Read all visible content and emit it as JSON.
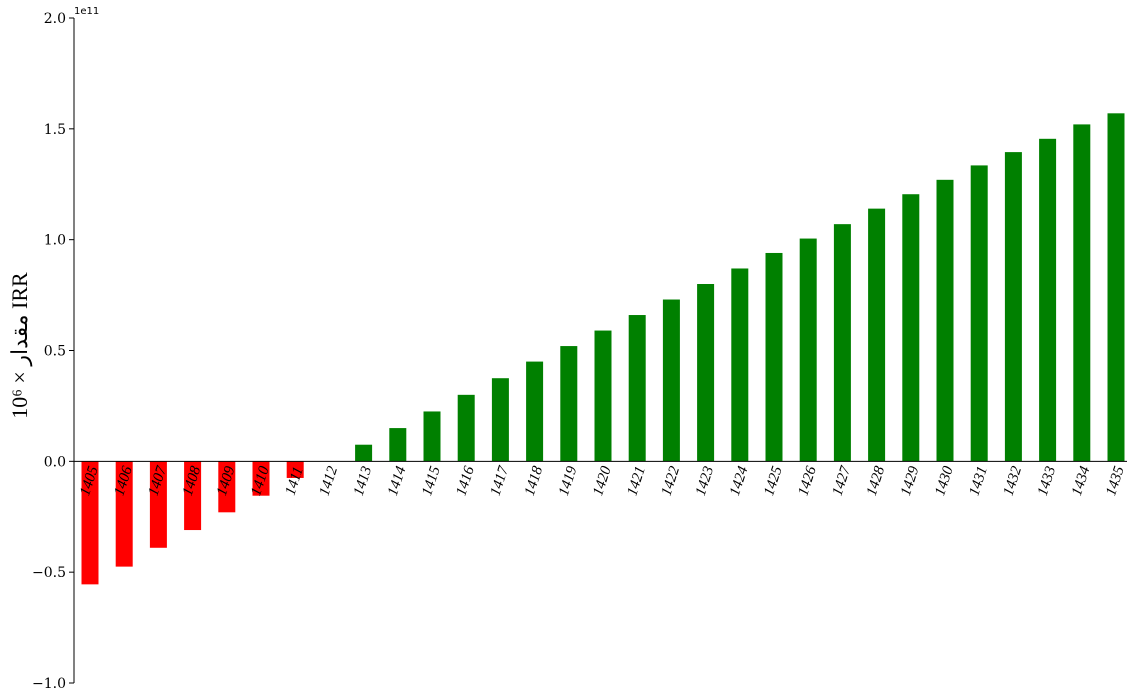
{
  "chart_data": {
    "type": "bar",
    "ylabel": "مقدار × 10⁶ IRR",
    "y_offset_label": "1e11",
    "ylim": [
      -1.0,
      2.0
    ],
    "yticks": [
      -1.0,
      -0.5,
      0.0,
      0.5,
      1.0,
      1.5,
      2.0
    ],
    "ytick_labels": [
      "−1.0",
      "−0.5",
      "0.0",
      "0.5",
      "1.0",
      "1.5",
      "2.0"
    ],
    "categories": [
      "1405",
      "1406",
      "1407",
      "1408",
      "1409",
      "1410",
      "1411",
      "1412",
      "1413",
      "1414",
      "1415",
      "1416",
      "1417",
      "1418",
      "1419",
      "1420",
      "1421",
      "1422",
      "1423",
      "1424",
      "1425",
      "1426",
      "1427",
      "1428",
      "1429",
      "1430",
      "1431",
      "1432",
      "1433",
      "1434",
      "1435"
    ],
    "values": [
      -0.555,
      -0.475,
      -0.39,
      -0.31,
      -0.23,
      -0.155,
      -0.075,
      0.0,
      0.075,
      0.15,
      0.225,
      0.3,
      0.375,
      0.45,
      0.52,
      0.59,
      0.66,
      0.73,
      0.8,
      0.87,
      0.94,
      1.005,
      1.07,
      1.14,
      1.205,
      1.27,
      1.335,
      1.395,
      1.455,
      1.52,
      1.57
    ],
    "colors": {
      "negative": "#ff0000",
      "positive": "#008000"
    },
    "grid": false,
    "legend": false
  }
}
